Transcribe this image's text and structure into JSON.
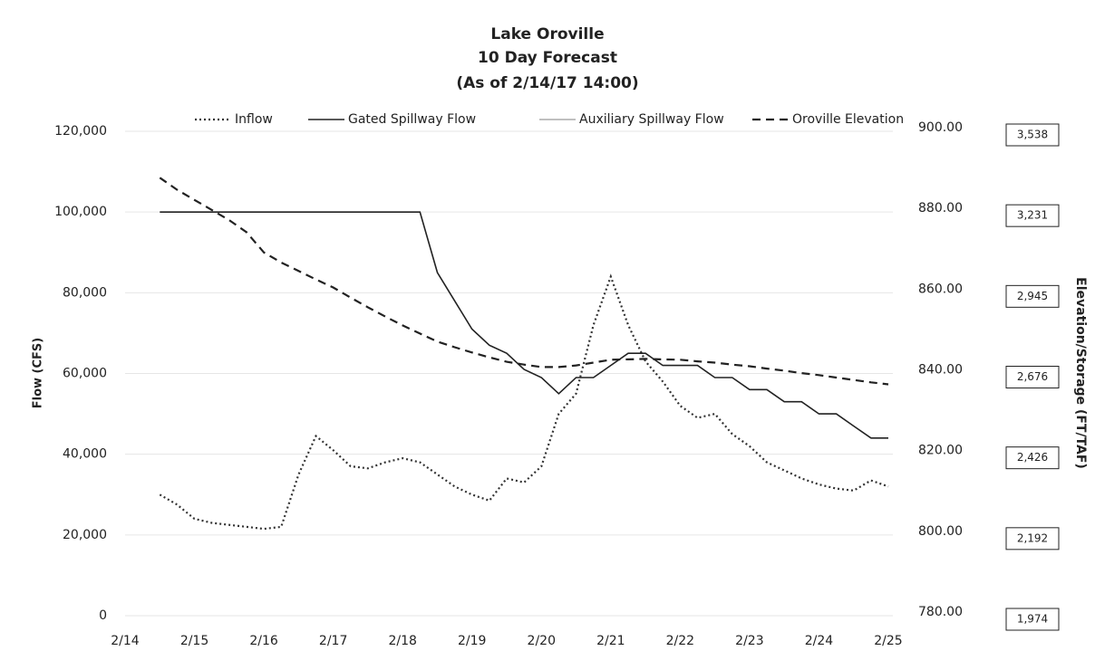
{
  "chart_data": {
    "type": "line",
    "title": "Lake Oroville",
    "subtitle": "10 Day Forecast",
    "subtitle2": "(As of 2/14/17 14:00)",
    "y_label": "Flow (CFS)",
    "y2_label": "Elevation/Storage (FT/TAF)",
    "categories": [
      "2/14",
      null,
      null,
      null,
      "2/15",
      null,
      null,
      null,
      "2/16",
      null,
      null,
      null,
      "2/17",
      null,
      null,
      null,
      "2/18",
      null,
      null,
      null,
      "2/19",
      null,
      null,
      null,
      "2/20",
      null,
      null,
      null,
      "2/21",
      null,
      null,
      null,
      "2/22",
      null,
      null,
      null,
      "2/23",
      null,
      null,
      null,
      "2/24",
      null,
      null,
      null,
      "2/25"
    ],
    "series": [
      {
        "name": "Inflow",
        "color": "#333333",
        "line_style": "dotted",
        "values": [
          null,
          null,
          30000,
          27500,
          24000,
          23000,
          22500,
          22000,
          21500,
          22000,
          35000,
          44500,
          41000,
          37000,
          36500,
          38000,
          39000,
          38000,
          35000,
          32000,
          30000,
          28500,
          34000,
          33000,
          37000,
          50000,
          55000,
          72000,
          84000,
          72000,
          63000,
          58000,
          52000,
          49000,
          50000,
          45000,
          42000,
          38000,
          36000,
          34000,
          32500,
          31500,
          31000,
          33500,
          32000
        ]
      },
      {
        "name": "Gated Spillway Flow",
        "color": "#222222",
        "line_style": "solid",
        "values": [
          null,
          null,
          100000,
          100000,
          100000,
          100000,
          100000,
          100000,
          100000,
          100000,
          100000,
          100000,
          100000,
          100000,
          100000,
          100000,
          100000,
          100000,
          85000,
          78000,
          71000,
          67000,
          65000,
          61000,
          59000,
          55000,
          59000,
          59000,
          62000,
          65000,
          65000,
          62000,
          62000,
          62000,
          59000,
          59000,
          56000,
          56000,
          53000,
          53000,
          50000,
          50000,
          47000,
          44000,
          44000
        ]
      },
      {
        "name": "Auxiliary Spillway Flow",
        "color": "#aaaaaa",
        "line_style": "solid",
        "values": [
          null,
          null,
          null,
          null,
          null,
          null,
          null,
          null,
          null,
          null,
          null,
          null,
          null,
          null,
          null,
          null,
          null,
          null,
          null,
          null,
          null,
          null,
          null,
          null,
          null,
          null,
          null,
          null,
          null,
          null,
          null,
          null,
          null,
          null,
          null,
          null,
          null,
          null,
          null,
          null,
          null,
          null,
          null,
          null,
          null
        ]
      },
      {
        "name": "Oroville Elevation",
        "color": "#222222",
        "line_style": "dashed",
        "axis": "y2",
        "values": [
          null,
          null,
          888.5,
          885.5,
          883,
          880.5,
          878,
          875,
          870,
          867.5,
          865.4,
          863.3,
          861.3,
          858.8,
          856.4,
          854.1,
          851.9,
          849.9,
          847.9,
          846.5,
          845.2,
          844,
          842.9,
          842.2,
          841.6,
          841.6,
          842,
          842.7,
          843.4,
          843.5,
          843.6,
          843.5,
          843.4,
          843,
          842.7,
          842.2,
          841.8,
          841.2,
          840.7,
          840.1,
          839.6,
          839,
          838.4,
          837.8,
          837.3
        ]
      }
    ],
    "ylim": [
      0,
      120000
    ],
    "yticks": [
      0,
      {
        "value": 20000,
        "label": "20,000"
      },
      {
        "value": 40000,
        "label": "40,000"
      },
      {
        "value": 60000,
        "label": "60,000"
      },
      {
        "value": 80000,
        "label": "80,000"
      },
      {
        "value": 100000,
        "label": "100,000"
      },
      {
        "value": 120000,
        "label": "120,000"
      }
    ],
    "y2lim": [
      780,
      900
    ],
    "y2ticks": [
      {
        "value": 780,
        "label": "780.00"
      },
      {
        "value": 800,
        "label": "800.00"
      },
      {
        "value": 820,
        "label": "820.00"
      },
      {
        "value": 840,
        "label": "840.00"
      },
      {
        "value": 860,
        "label": "860.00"
      },
      {
        "value": 880,
        "label": "880.00"
      },
      {
        "value": 900,
        "label": "900.00"
      }
    ],
    "storage_labels": [
      "1,974",
      "2,192",
      "2,426",
      "2,676",
      "2,945",
      "3,231",
      "3,538"
    ],
    "grid": true,
    "legend": "top"
  }
}
